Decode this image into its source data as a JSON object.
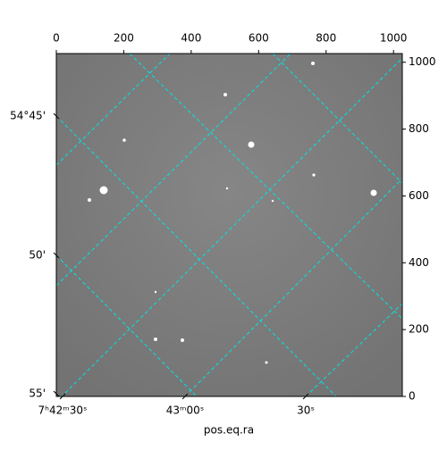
{
  "chart_data": {
    "type": "image",
    "xlabel": "pos.eq.ra",
    "xlim": [
      0,
      1026
    ],
    "xticks": [
      0,
      200,
      400,
      600,
      800,
      1000
    ],
    "ylim": [
      0,
      1026
    ],
    "yticks": [
      0,
      200,
      400,
      600,
      800,
      1000
    ],
    "ra_labels": [
      "7ʰ42ᵐ30ˢ",
      "43ᵐ00ˢ",
      "30ˢ"
    ],
    "dec_labels": [
      "54°45'",
      "50'",
      "55'"
    ],
    "grid_color": "#00e5e5"
  }
}
